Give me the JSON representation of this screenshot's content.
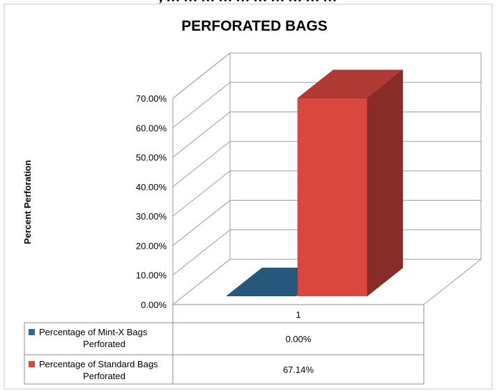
{
  "header_text": ", … … … … … … … … … …",
  "chart_data": {
    "type": "bar",
    "title": "PERFORATED BAGS",
    "ylabel": "Percent Perforation",
    "xlabel": "",
    "categories": [
      "1"
    ],
    "ylim": [
      0,
      0.7
    ],
    "y_ticks": [
      "0.00%",
      "10.00%",
      "20.00%",
      "30.00%",
      "40.00%",
      "50.00%",
      "60.00%",
      "70.00%"
    ],
    "three_d": true,
    "grid": true,
    "legend_placement": "data-table-below",
    "series": [
      {
        "name": "Percentage of Mint-X Bags Perforated",
        "name_lines": [
          "Percentage of Mint-X Bags",
          "Perforated"
        ],
        "values": [
          0.0
        ],
        "label": "0.00%",
        "color": "#2E6A97"
      },
      {
        "name": "Percentage of Standard Bags Perforated",
        "name_lines": [
          "Percentage of Standard Bags",
          "Perforated"
        ],
        "values": [
          0.6714
        ],
        "label": "67.14%",
        "color": "#D9473F"
      }
    ]
  }
}
